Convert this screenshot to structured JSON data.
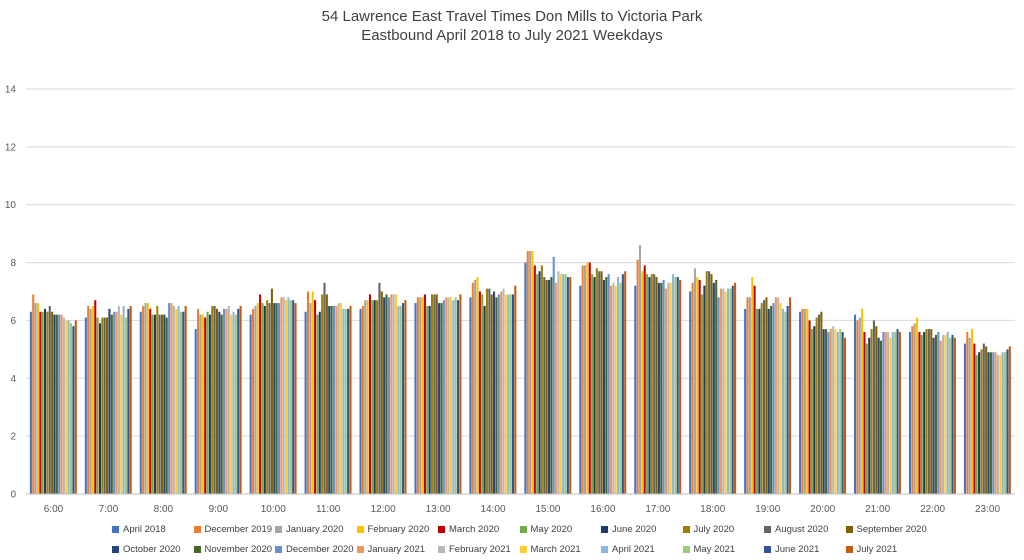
{
  "chart_data": {
    "type": "bar",
    "title": "54 Lawrence East Travel Times Don Mills to Victoria Park",
    "subtitle": "Eastbound April 2018 to July 2021 Weekdays",
    "xlabel": "",
    "ylabel": "",
    "ylim": [
      0,
      14
    ],
    "yticks": [
      0,
      2,
      4,
      6,
      8,
      10,
      12,
      14
    ],
    "grid": true,
    "legend_position": "bottom",
    "categories": [
      "6:00",
      "7:00",
      "8:00",
      "9:00",
      "10:00",
      "11:00",
      "12:00",
      "13:00",
      "14:00",
      "15:00",
      "16:00",
      "17:00",
      "18:00",
      "19:00",
      "20:00",
      "21:00",
      "22:00",
      "23:00"
    ],
    "series": [
      {
        "name": "April 2018",
        "color": "#4472c4",
        "values": [
          6.3,
          6.1,
          6.3,
          5.7,
          6.2,
          6.3,
          6.4,
          6.6,
          6.8,
          8.0,
          7.2,
          7.2,
          7.0,
          6.4,
          6.3,
          6.2,
          5.6,
          5.2
        ]
      },
      {
        "name": "December 2019",
        "color": "#ed7d31",
        "values": [
          6.9,
          6.5,
          6.5,
          6.4,
          6.4,
          7.0,
          6.5,
          6.8,
          7.3,
          8.4,
          7.9,
          8.1,
          7.3,
          6.8,
          6.4,
          6.0,
          5.8,
          5.6
        ]
      },
      {
        "name": "January 2020",
        "color": "#a5a5a5",
        "values": [
          6.6,
          6.4,
          6.6,
          6.2,
          6.5,
          6.6,
          6.7,
          6.8,
          7.4,
          8.4,
          7.9,
          8.6,
          7.8,
          6.8,
          6.4,
          6.1,
          5.9,
          5.4
        ]
      },
      {
        "name": "February 2020",
        "color": "#ffc000",
        "values": [
          6.6,
          6.5,
          6.6,
          6.2,
          6.6,
          7.0,
          6.7,
          6.8,
          7.5,
          8.4,
          8.0,
          7.7,
          7.5,
          7.5,
          6.4,
          6.4,
          6.1,
          5.7
        ]
      },
      {
        "name": "March 2020",
        "color": "#c00000",
        "values": [
          6.3,
          6.7,
          6.4,
          6.1,
          6.9,
          6.7,
          6.9,
          6.9,
          7.0,
          7.9,
          8.0,
          7.9,
          7.4,
          7.2,
          6.0,
          5.6,
          5.6,
          5.2
        ]
      },
      {
        "name": "May 2020",
        "color": "#70ad47",
        "values": [
          6.3,
          6.1,
          6.2,
          6.3,
          6.6,
          6.2,
          6.7,
          6.5,
          6.9,
          7.6,
          7.6,
          7.6,
          6.9,
          6.4,
          5.7,
          5.2,
          5.5,
          4.8
        ]
      },
      {
        "name": "June 2020",
        "color": "#1f3864",
        "values": [
          6.4,
          5.9,
          6.2,
          6.2,
          6.5,
          6.3,
          6.7,
          6.5,
          6.5,
          7.7,
          7.5,
          7.5,
          7.2,
          6.4,
          5.8,
          5.4,
          5.6,
          4.9
        ]
      },
      {
        "name": "July 2020",
        "color": "#9e8000",
        "values": [
          6.3,
          6.1,
          6.5,
          6.5,
          6.7,
          6.9,
          6.7,
          6.9,
          7.1,
          7.9,
          7.8,
          7.6,
          7.7,
          6.6,
          6.1,
          5.7,
          5.7,
          5.0
        ]
      },
      {
        "name": "August 2020",
        "color": "#636363",
        "values": [
          6.5,
          6.1,
          6.2,
          6.5,
          6.6,
          7.3,
          7.3,
          6.9,
          7.1,
          7.5,
          7.7,
          7.6,
          7.7,
          6.7,
          6.2,
          6.0,
          5.7,
          5.2
        ]
      },
      {
        "name": "September 2020",
        "color": "#806000",
        "values": [
          6.3,
          6.1,
          6.2,
          6.4,
          7.1,
          6.9,
          7.0,
          6.9,
          6.9,
          7.4,
          7.7,
          7.5,
          7.6,
          6.8,
          6.3,
          5.8,
          5.7,
          5.1
        ]
      },
      {
        "name": "October 2020",
        "color": "#264478",
        "values": [
          6.2,
          6.4,
          6.2,
          6.3,
          6.6,
          6.5,
          6.8,
          6.6,
          7.0,
          7.4,
          7.4,
          7.3,
          7.3,
          6.4,
          5.7,
          5.4,
          5.4,
          4.9
        ]
      },
      {
        "name": "November 2020",
        "color": "#43682b",
        "values": [
          6.2,
          6.2,
          6.1,
          6.2,
          6.6,
          6.5,
          6.9,
          6.6,
          6.8,
          7.5,
          7.5,
          7.3,
          7.4,
          6.5,
          5.7,
          5.3,
          5.5,
          4.9
        ]
      },
      {
        "name": "December 2020",
        "color": "#698ed0",
        "values": [
          6.2,
          6.3,
          6.6,
          6.4,
          6.6,
          6.5,
          6.8,
          6.7,
          6.9,
          8.2,
          7.6,
          7.4,
          6.8,
          6.6,
          5.6,
          5.6,
          5.6,
          4.9
        ]
      },
      {
        "name": "January 2021",
        "color": "#f1975a",
        "values": [
          6.2,
          6.3,
          6.6,
          6.4,
          6.8,
          6.5,
          6.9,
          6.8,
          7.0,
          7.3,
          7.2,
          7.1,
          7.1,
          6.8,
          5.7,
          5.6,
          5.3,
          4.9
        ]
      },
      {
        "name": "February 2021",
        "color": "#b7b7b7",
        "values": [
          6.1,
          6.5,
          6.5,
          6.5,
          6.8,
          6.6,
          6.9,
          6.8,
          7.1,
          7.7,
          7.3,
          7.3,
          7.1,
          6.8,
          5.8,
          5.6,
          5.5,
          4.8
        ]
      },
      {
        "name": "March 2021",
        "color": "#ffcd33",
        "values": [
          6.0,
          6.2,
          6.4,
          6.2,
          6.7,
          6.6,
          6.9,
          6.8,
          6.9,
          7.6,
          7.2,
          7.3,
          7.0,
          6.6,
          5.7,
          5.4,
          5.5,
          4.8
        ]
      },
      {
        "name": "April 2021",
        "color": "#8cb5e0",
        "values": [
          6.0,
          6.5,
          6.5,
          6.3,
          6.8,
          6.4,
          6.5,
          6.7,
          6.9,
          7.6,
          7.5,
          7.6,
          7.1,
          6.4,
          5.6,
          5.6,
          5.6,
          4.9
        ]
      },
      {
        "name": "May 2021",
        "color": "#9cc97a",
        "values": [
          5.9,
          6.1,
          6.3,
          6.2,
          6.7,
          6.4,
          6.5,
          6.8,
          6.9,
          7.6,
          7.3,
          7.5,
          7.1,
          6.3,
          5.7,
          5.6,
          5.4,
          4.9
        ]
      },
      {
        "name": "June 2021",
        "color": "#2f5597",
        "values": [
          5.8,
          6.4,
          6.3,
          6.4,
          6.7,
          6.4,
          6.6,
          6.7,
          6.9,
          7.5,
          7.6,
          7.5,
          7.2,
          6.5,
          5.6,
          5.7,
          5.5,
          5.0
        ]
      },
      {
        "name": "July 2021",
        "color": "#c55a11",
        "values": [
          6.0,
          6.5,
          6.5,
          6.5,
          6.6,
          6.5,
          6.7,
          6.9,
          7.2,
          7.5,
          7.7,
          7.4,
          7.3,
          6.8,
          5.4,
          5.6,
          5.4,
          5.1
        ]
      }
    ]
  }
}
